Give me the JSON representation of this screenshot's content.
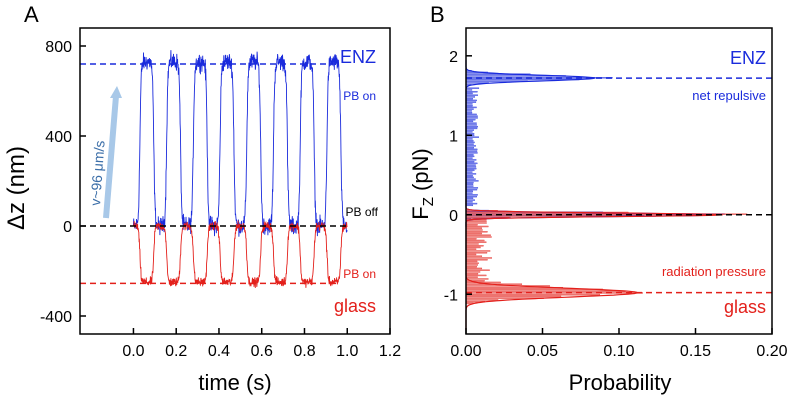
{
  "chart_data": [
    {
      "panel": "A",
      "type": "line",
      "xlabel": "time (s)",
      "ylabel": "Δz (nm)",
      "xlim": [
        -0.25,
        1.2
      ],
      "ylim": [
        -480,
        880
      ],
      "xticks": [
        0.0,
        0.2,
        0.4,
        0.6,
        0.8,
        1.0,
        1.2
      ],
      "xtick_labels": [
        "0.0",
        "0.2",
        "0.4",
        "0.6",
        "0.8",
        "1.0",
        "1.2"
      ],
      "yticks": [
        -400,
        0,
        400,
        800
      ],
      "ytick_labels": [
        "-400",
        "0",
        "400",
        "800"
      ],
      "reference_lines": [
        {
          "y": 720,
          "color": "#1a2bdc",
          "style": "dashed",
          "label": "PB on"
        },
        {
          "y": 0,
          "color": "#000000",
          "style": "dashed",
          "label": "PB off"
        },
        {
          "y": -255,
          "color": "#e3201b",
          "style": "dashed",
          "label": "PB on"
        }
      ],
      "series": [
        {
          "name": "ENZ",
          "color": "#1a2bdc",
          "baseline": 0,
          "plateau": 730,
          "pulses": [
            [
              0.03,
              0.095
            ],
            [
              0.155,
              0.22
            ],
            [
              0.28,
              0.345
            ],
            [
              0.405,
              0.47
            ],
            [
              0.53,
              0.595
            ],
            [
              0.655,
              0.72
            ],
            [
              0.78,
              0.845
            ],
            [
              0.905,
              0.97
            ]
          ]
        },
        {
          "name": "glass",
          "color": "#e3201b",
          "baseline": 0,
          "plateau": -250,
          "pulses": [
            [
              0.03,
              0.095
            ],
            [
              0.155,
              0.22
            ],
            [
              0.28,
              0.345
            ],
            [
              0.405,
              0.47
            ],
            [
              0.53,
              0.595
            ],
            [
              0.655,
              0.72
            ],
            [
              0.78,
              0.845
            ],
            [
              0.905,
              0.97
            ]
          ]
        }
      ],
      "legend": [
        {
          "label": "ENZ",
          "color": "#1a2bdc"
        },
        {
          "label": "glass",
          "color": "#e3201b"
        }
      ],
      "annotations": {
        "velocity": "v~96 μm/s",
        "pb_on_top": "PB on",
        "pb_off": "PB off",
        "pb_on_bottom": "PB on"
      }
    },
    {
      "panel": "B",
      "type": "bar",
      "orientation": "horizontal",
      "xlabel": "Probability",
      "ylabel": "F_z (pN)",
      "ylabel_main": "F",
      "ylabel_sub": "Z",
      "ylabel_unit": " (pN)",
      "xlim": [
        0,
        0.2
      ],
      "ylim": [
        -1.5,
        2.35
      ],
      "xticks": [
        0.0,
        0.05,
        0.1,
        0.15,
        0.2
      ],
      "xtick_labels": [
        "0.00",
        "0.05",
        "0.10",
        "0.15",
        "0.20"
      ],
      "yticks": [
        -1,
        0,
        1,
        2
      ],
      "ytick_labels": [
        "-1",
        "0",
        "1",
        "2"
      ],
      "reference_lines": [
        {
          "y": 1.72,
          "color": "#1a2bdc",
          "style": "dashed"
        },
        {
          "y": 0,
          "color": "#000000",
          "style": "dashed"
        },
        {
          "y": -0.98,
          "color": "#e3201b",
          "style": "dashed"
        }
      ],
      "series": [
        {
          "name": "ENZ",
          "color": "#1a2bdc",
          "peaks": [
            {
              "center": 1.72,
              "height": 0.084,
              "width": 0.035
            },
            {
              "center": 0.0,
              "height": 0.162,
              "width": 0.022
            }
          ]
        },
        {
          "name": "glass",
          "color": "#e3201b",
          "peaks": [
            {
              "center": -0.98,
              "height": 0.112,
              "width": 0.055
            },
            {
              "center": 0.0,
              "height": 0.168,
              "width": 0.022
            }
          ]
        }
      ],
      "legend": [
        {
          "label": "ENZ",
          "color": "#1a2bdc"
        },
        {
          "label": "glass",
          "color": "#e3201b"
        }
      ],
      "annotations": {
        "top": "net repulsive",
        "bottom": "radiation pressure"
      }
    }
  ],
  "colors": {
    "enz": "#1a2bdc",
    "glass": "#e3201b",
    "axis": "#000000",
    "arrow": "#a8c8e8",
    "velocity_text": "#3b6ea8"
  }
}
